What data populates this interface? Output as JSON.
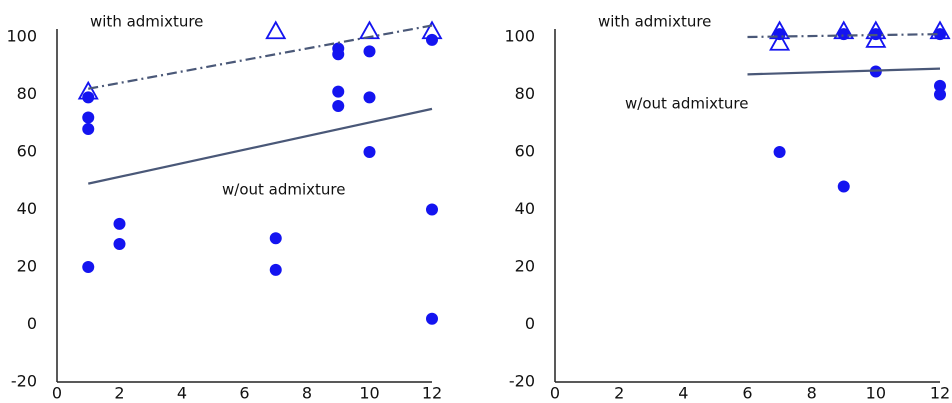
{
  "chart_data": [
    {
      "type": "scatter",
      "xlim": [
        0,
        12
      ],
      "xticks": [
        0,
        2,
        4,
        6,
        8,
        10,
        12
      ],
      "ylim": [
        -20,
        100
      ],
      "yticks": [
        -20,
        0,
        20,
        40,
        60,
        80,
        100
      ],
      "series": [
        {
          "marker": "circle",
          "color": "#1414f0",
          "x": [
            1,
            1,
            1,
            1,
            2,
            2,
            7,
            7,
            9,
            9,
            9,
            9,
            10,
            10,
            10,
            12,
            12,
            12
          ],
          "values": [
            79,
            72,
            68,
            20,
            35,
            28,
            30,
            19,
            96,
            94,
            81,
            76,
            95,
            79,
            60,
            99,
            40,
            2
          ]
        },
        {
          "marker": "triangle-open",
          "color": "#1414f0",
          "x": [
            1,
            7,
            10,
            12
          ],
          "values": [
            81,
            102,
            102,
            102
          ]
        },
        {
          "marker": "line",
          "name": "with admixture",
          "style": "dashdot",
          "color": "#4a5878",
          "x": [
            1,
            12
          ],
          "values": [
            82,
            104
          ]
        },
        {
          "marker": "line",
          "name": "w/out admixture",
          "style": "solid",
          "color": "#4a5878",
          "x": [
            1,
            12
          ],
          "values": [
            49,
            75
          ]
        }
      ]
    },
    {
      "type": "scatter",
      "xlim": [
        0,
        12
      ],
      "xticks": [
        0,
        2,
        4,
        6,
        8,
        10,
        12
      ],
      "ylim": [
        -20,
        100
      ],
      "yticks": [
        -20,
        0,
        20,
        40,
        60,
        80,
        100
      ],
      "series": [
        {
          "marker": "circle",
          "color": "#1414f0",
          "x": [
            7,
            9,
            10,
            12,
            12,
            7,
            9,
            10,
            12
          ],
          "values": [
            60,
            48,
            88,
            83,
            80,
            101,
            101,
            101,
            101
          ]
        },
        {
          "marker": "triangle-open",
          "color": "#1414f0",
          "x": [
            7,
            7,
            9,
            10,
            10,
            12
          ],
          "values": [
            102,
            98,
            102,
            102,
            99,
            102
          ]
        },
        {
          "marker": "line",
          "name": "with admixture",
          "style": "dashdot",
          "color": "#4a5878",
          "x": [
            6,
            12
          ],
          "values": [
            100,
            101
          ]
        },
        {
          "marker": "line",
          "name": "w/out admixture",
          "style": "solid",
          "color": "#4a5878",
          "x": [
            6,
            12
          ],
          "values": [
            87,
            89
          ]
        }
      ]
    }
  ]
}
